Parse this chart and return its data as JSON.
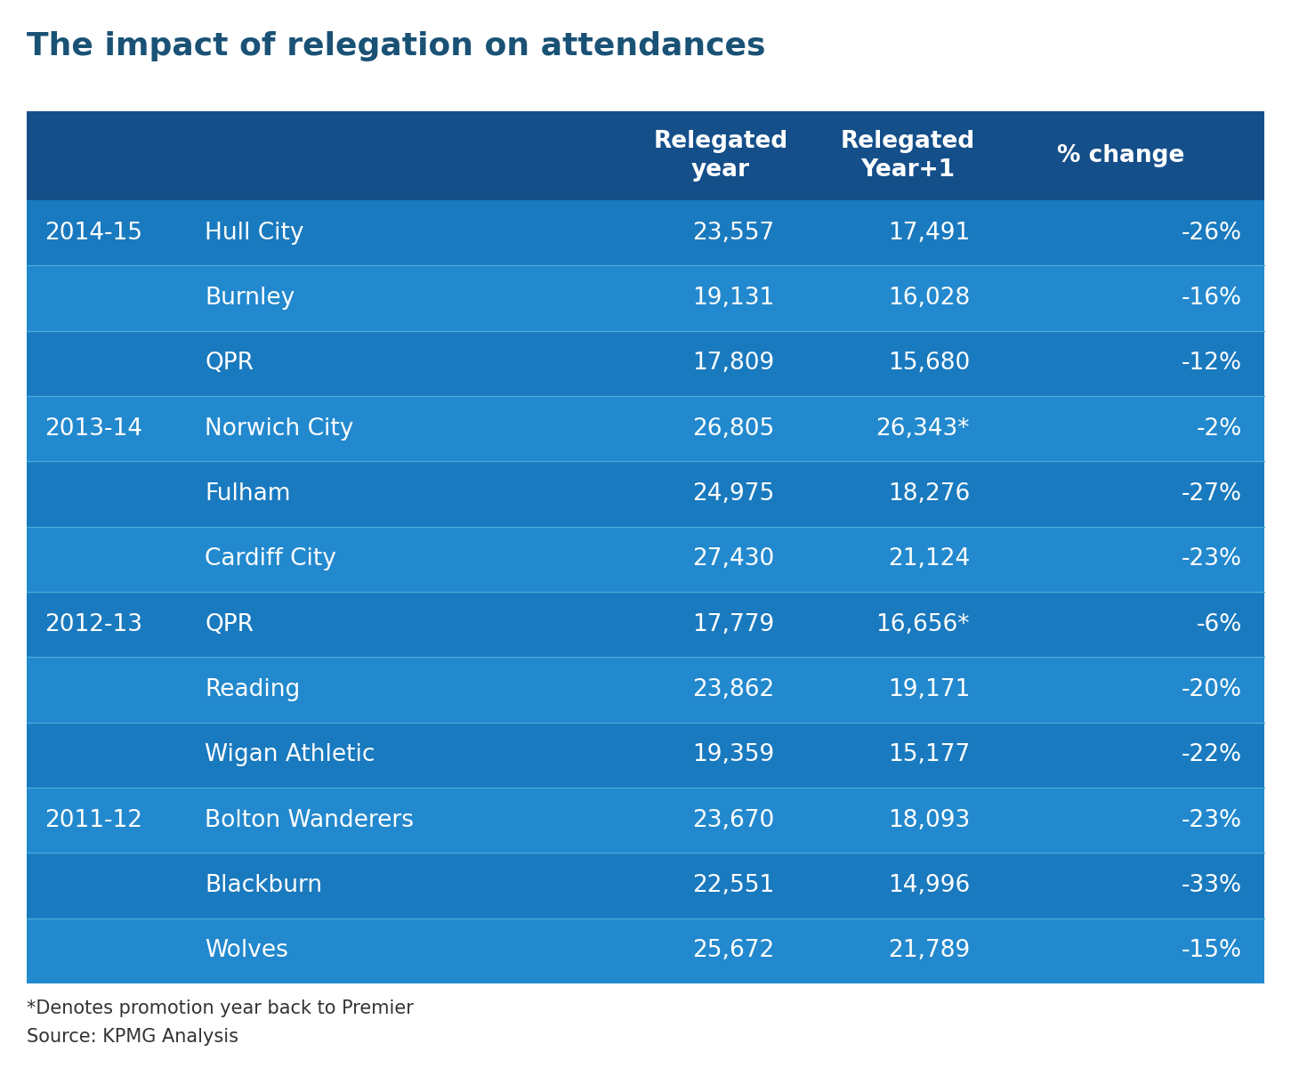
{
  "title": "The impact of relegation on attendances",
  "title_color": "#1a5276",
  "header_bg": "#154f8a",
  "row_bg_even": "#1a7abf",
  "row_bg_odd": "#2389ce",
  "divider_color": "#4aaad8",
  "header_text_color": "#ffffff",
  "row_text_color": "#ffffff",
  "footnote_text_color": "#333333",
  "rows": [
    {
      "season": "2014-15",
      "club": "Hull City",
      "rel_year": "23,557",
      "rel_year1": "17,491",
      "pct_change": "-26%"
    },
    {
      "season": "",
      "club": "Burnley",
      "rel_year": "19,131",
      "rel_year1": "16,028",
      "pct_change": "-16%"
    },
    {
      "season": "",
      "club": "QPR",
      "rel_year": "17,809",
      "rel_year1": "15,680",
      "pct_change": "-12%"
    },
    {
      "season": "2013-14",
      "club": "Norwich City",
      "rel_year": "26,805",
      "rel_year1": "26,343*",
      "pct_change": "-2%"
    },
    {
      "season": "",
      "club": "Fulham",
      "rel_year": "24,975",
      "rel_year1": "18,276",
      "pct_change": "-27%"
    },
    {
      "season": "",
      "club": "Cardiff City",
      "rel_year": "27,430",
      "rel_year1": "21,124",
      "pct_change": "-23%"
    },
    {
      "season": "2012-13",
      "club": "QPR",
      "rel_year": "17,779",
      "rel_year1": "16,656*",
      "pct_change": "-6%"
    },
    {
      "season": "",
      "club": "Reading",
      "rel_year": "23,862",
      "rel_year1": "19,171",
      "pct_change": "-20%"
    },
    {
      "season": "",
      "club": "Wigan Athletic",
      "rel_year": "19,359",
      "rel_year1": "15,177",
      "pct_change": "-22%"
    },
    {
      "season": "2011-12",
      "club": "Bolton Wanderers",
      "rel_year": "23,670",
      "rel_year1": "18,093",
      "pct_change": "-23%"
    },
    {
      "season": "",
      "club": "Blackburn",
      "rel_year": "22,551",
      "rel_year1": "14,996",
      "pct_change": "-33%"
    },
    {
      "season": "",
      "club": "Wolves",
      "rel_year": "25,672",
      "rel_year1": "21,789",
      "pct_change": "-15%"
    }
  ],
  "footnote1": "*Denotes promotion year back to Premier",
  "footnote2": "Source: KPMG Analysis"
}
